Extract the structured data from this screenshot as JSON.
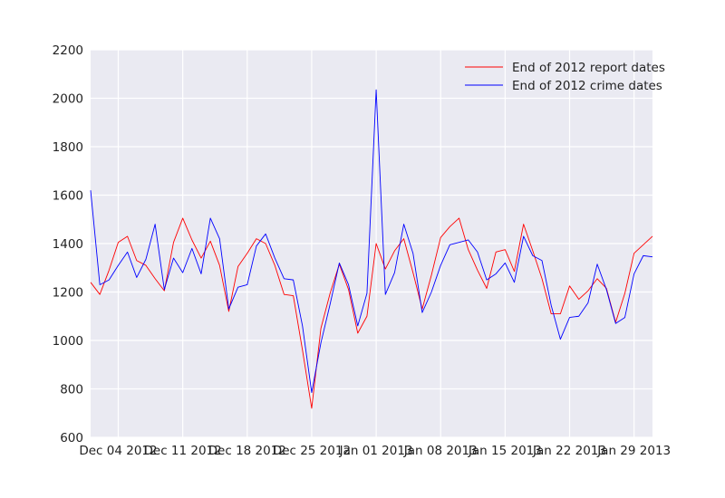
{
  "chart_data": {
    "type": "line",
    "x_start": "2012-12-01",
    "x_end": "2013-01-31",
    "xlim": [
      "2012-12-01",
      "2013-01-31"
    ],
    "ylim": [
      600,
      2200
    ],
    "yticks": [
      600,
      800,
      1000,
      1200,
      1400,
      1600,
      1800,
      2000,
      2200
    ],
    "xticks": [
      {
        "date": "2012-12-04",
        "label": "Dec 04 2012"
      },
      {
        "date": "2012-12-11",
        "label": "Dec 11 2012"
      },
      {
        "date": "2012-12-18",
        "label": "Dec 18 2012"
      },
      {
        "date": "2012-12-25",
        "label": "Dec 25 2012"
      },
      {
        "date": "2013-01-01",
        "label": "Jan 01 2013"
      },
      {
        "date": "2013-01-08",
        "label": "Jan 08 2013"
      },
      {
        "date": "2013-01-15",
        "label": "Jan 15 2013"
      },
      {
        "date": "2013-01-22",
        "label": "Jan 22 2013"
      },
      {
        "date": "2013-01-29",
        "label": "Jan 29 2013"
      }
    ],
    "grid": true,
    "legend_position": "top-right",
    "title": "",
    "xlabel": "",
    "ylabel": "",
    "series": [
      {
        "name": "End of 2012 report dates",
        "color": "#ff0000",
        "values": [
          1240,
          1190,
          1290,
          1405,
          1430,
          1330,
          1310,
          1255,
          1205,
          1405,
          1505,
          1415,
          1340,
          1410,
          1310,
          1120,
          1305,
          1360,
          1420,
          1400,
          1310,
          1190,
          1185,
          960,
          720,
          1050,
          1195,
          1315,
          1210,
          1030,
          1100,
          1400,
          1295,
          1370,
          1420,
          1280,
          1130,
          1270,
          1425,
          1470,
          1505,
          1375,
          1290,
          1215,
          1365,
          1375,
          1285,
          1480,
          1370,
          1255,
          1110,
          1110,
          1225,
          1170,
          1205,
          1255,
          1215,
          1075,
          1195,
          1360,
          1395,
          1430
        ]
      },
      {
        "name": "End of 2012 crime dates",
        "color": "#0000ff",
        "values": [
          1620,
          1230,
          1250,
          1310,
          1365,
          1260,
          1335,
          1480,
          1210,
          1340,
          1280,
          1380,
          1275,
          1505,
          1420,
          1130,
          1220,
          1230,
          1390,
          1440,
          1340,
          1255,
          1250,
          1060,
          785,
          990,
          1150,
          1320,
          1230,
          1060,
          1195,
          2035,
          1190,
          1280,
          1480,
          1360,
          1115,
          1200,
          1310,
          1395,
          1405,
          1415,
          1365,
          1250,
          1275,
          1320,
          1240,
          1430,
          1350,
          1330,
          1145,
          1005,
          1095,
          1100,
          1155,
          1315,
          1210,
          1070,
          1095,
          1275,
          1350,
          1345
        ]
      }
    ]
  }
}
